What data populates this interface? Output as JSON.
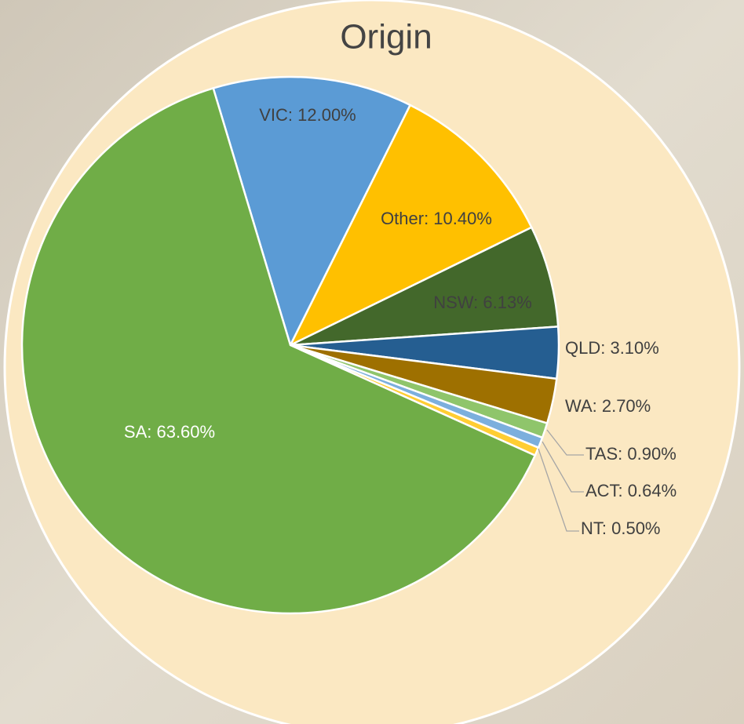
{
  "chart_data": {
    "type": "pie",
    "title": "Origin",
    "values": [
      12.0,
      10.4,
      6.13,
      3.1,
      2.7,
      0.9,
      0.64,
      0.5,
      63.6
    ],
    "value_labels": [
      "VIC: 12.00%",
      "Other: 10.40%",
      "NSW: 6.13%",
      "QLD: 3.10%",
      "WA: 2.70%",
      "TAS: 0.90%",
      "ACT: 0.64%",
      "NT: 0.50%",
      "SA: 63.60%"
    ],
    "colors": [
      "#5b9bd5",
      "#ffc000",
      "#43682b",
      "#255e91",
      "#9e7000",
      "#8fc56b",
      "#7cafdd",
      "#ffcd33",
      "#70ad47"
    ]
  }
}
